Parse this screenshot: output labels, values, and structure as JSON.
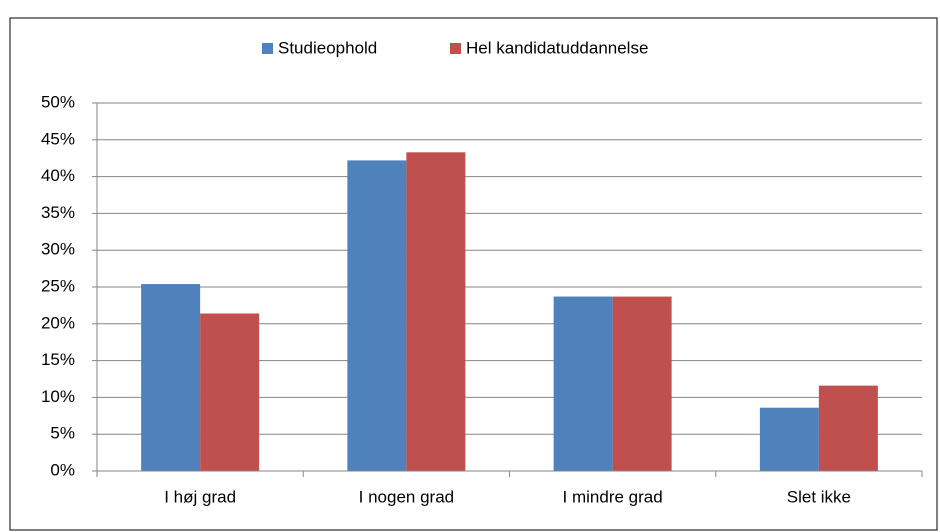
{
  "chart_data": {
    "type": "bar",
    "categories": [
      "I høj grad",
      "I nogen grad",
      "I mindre grad",
      "Slet ikke"
    ],
    "series": [
      {
        "name": "Studieophold",
        "color": "#4f81bd",
        "values": [
          25.4,
          42.2,
          23.7,
          8.6
        ]
      },
      {
        "name": "Hel kandidatuddannelse",
        "color": "#c0504d",
        "values": [
          21.4,
          43.3,
          23.7,
          11.6
        ]
      }
    ],
    "ylim": [
      0,
      50
    ],
    "yticks": [
      {
        "value": 0,
        "label": "0%"
      },
      {
        "value": 5,
        "label": "5%"
      },
      {
        "value": 10,
        "label": "10%"
      },
      {
        "value": 15,
        "label": "15%"
      },
      {
        "value": 20,
        "label": "20%"
      },
      {
        "value": 25,
        "label": "25%"
      },
      {
        "value": 30,
        "label": "30%"
      },
      {
        "value": 35,
        "label": "35%"
      },
      {
        "value": 40,
        "label": "40%"
      },
      {
        "value": 45,
        "label": "45%"
      },
      {
        "value": 50,
        "label": "50%"
      }
    ],
    "grid": true,
    "legend": "top"
  }
}
